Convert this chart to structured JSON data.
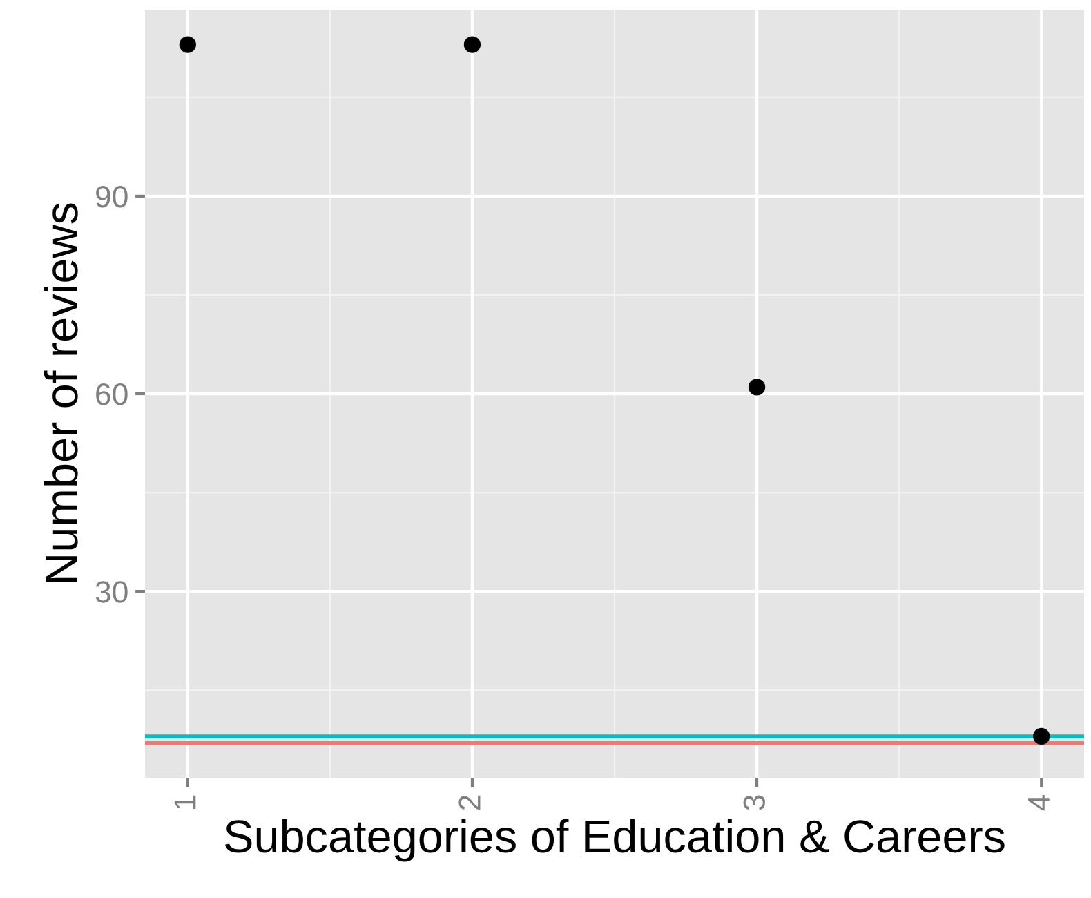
{
  "chart_data": {
    "type": "scatter",
    "xlabel": "Subcategories of Education & Careers",
    "ylabel": "Number of reviews",
    "x": [
      1,
      2,
      3,
      4
    ],
    "series": [
      {
        "color": "#000000",
        "values": [
          113,
          113,
          61,
          8
        ]
      }
    ],
    "marker": "circle",
    "xlim": [
      0.85,
      4.15
    ],
    "xticks": [
      1,
      2,
      3,
      4
    ],
    "ylim": [
      1.7,
      118.3
    ],
    "yticks": [
      30,
      60,
      90
    ],
    "ref_lines": [
      {
        "axis": "y",
        "value": 8,
        "color": "#00bfc4"
      },
      {
        "axis": "y",
        "value": 7,
        "color": "#f8766d"
      }
    ],
    "grid": true
  }
}
